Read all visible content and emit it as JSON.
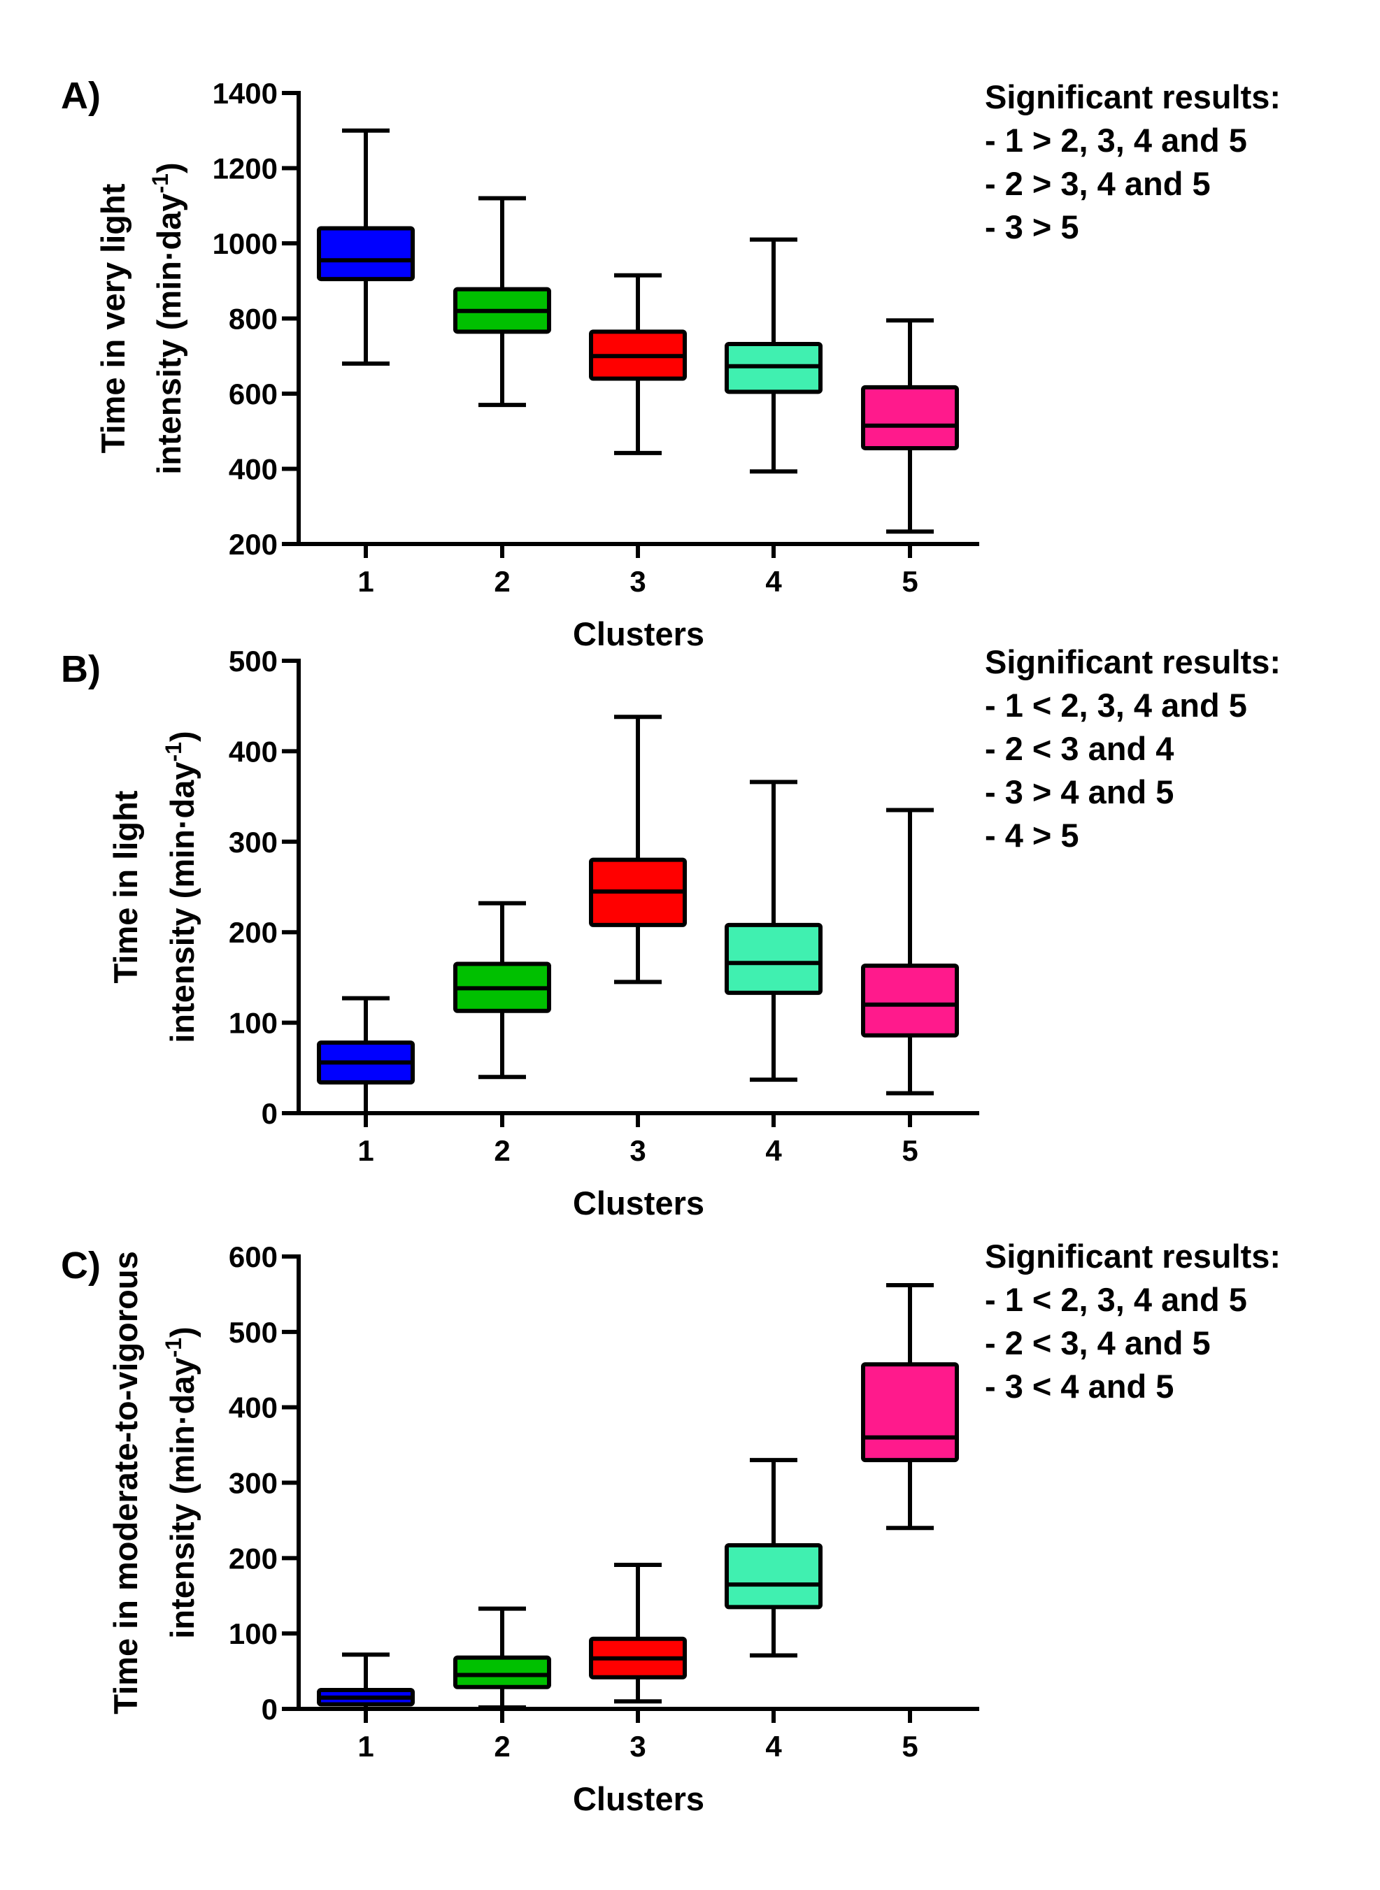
{
  "colors": {
    "cluster_1": "#0000ff",
    "cluster_2": "#00c000",
    "cluster_3": "#ff0000",
    "cluster_4": "#40f0b0",
    "cluster_5": "#ff1a8c"
  },
  "chart_data": [
    {
      "type": "box",
      "panel_label": "A)",
      "ylabel_line1": "Time in very light",
      "ylabel_line2": "intensity (min·day",
      "ylabel_superscript": "-1",
      "ylabel_close": ")",
      "xlabel": "Clusters",
      "ylim": [
        200,
        1400
      ],
      "yticks": [
        200,
        400,
        600,
        800,
        1000,
        1200,
        1400
      ],
      "categories": [
        "1",
        "2",
        "3",
        "4",
        "5"
      ],
      "boxes": [
        {
          "min": 680,
          "q1": 905,
          "median": 955,
          "q3": 1040,
          "max": 1300
        },
        {
          "min": 570,
          "q1": 765,
          "median": 820,
          "q3": 878,
          "max": 1120
        },
        {
          "min": 442,
          "q1": 640,
          "median": 700,
          "q3": 765,
          "max": 915
        },
        {
          "min": 393,
          "q1": 605,
          "median": 673,
          "q3": 732,
          "max": 1010
        },
        {
          "min": 233,
          "q1": 455,
          "median": 515,
          "q3": 617,
          "max": 795
        }
      ],
      "notes": [
        "Significant results:",
        "- 1 > 2, 3, 4 and 5",
        "- 2 > 3, 4 and 5",
        "- 3 > 5"
      ]
    },
    {
      "type": "box",
      "panel_label": "B)",
      "ylabel_line1": "Time in light",
      "ylabel_line2": "intensity (min·day",
      "ylabel_superscript": "-1",
      "ylabel_close": ")",
      "xlabel": "Clusters",
      "ylim": [
        0,
        500
      ],
      "yticks": [
        0,
        100,
        200,
        300,
        400,
        500
      ],
      "categories": [
        "1",
        "2",
        "3",
        "4",
        "5"
      ],
      "boxes": [
        {
          "min": 0,
          "q1": 34,
          "median": 56,
          "q3": 78,
          "max": 127
        },
        {
          "min": 40,
          "q1": 113,
          "median": 138,
          "q3": 165,
          "max": 232
        },
        {
          "min": 145,
          "q1": 208,
          "median": 245,
          "q3": 280,
          "max": 438
        },
        {
          "min": 37,
          "q1": 133,
          "median": 166,
          "q3": 208,
          "max": 366
        },
        {
          "min": 22,
          "q1": 86,
          "median": 120,
          "q3": 163,
          "max": 335
        }
      ],
      "notes": [
        "Significant results:",
        "- 1 < 2, 3, 4 and 5",
        "- 2 < 3 and 4",
        "- 3 > 4 and 5",
        "- 4 > 5"
      ]
    },
    {
      "type": "box",
      "panel_label": "C)",
      "ylabel_line1": "Time in moderate-to-vigorous",
      "ylabel_line2": "intensity (min·day",
      "ylabel_superscript": "-1",
      "ylabel_close": ")",
      "xlabel": "Clusters",
      "ylim": [
        0,
        600
      ],
      "yticks": [
        0,
        100,
        200,
        300,
        400,
        500,
        600
      ],
      "categories": [
        "1",
        "2",
        "3",
        "4",
        "5"
      ],
      "boxes": [
        {
          "min": 0,
          "q1": 6,
          "median": 15,
          "q3": 25,
          "max": 72
        },
        {
          "min": 2,
          "q1": 29,
          "median": 45,
          "q3": 68,
          "max": 133
        },
        {
          "min": 10,
          "q1": 42,
          "median": 67,
          "q3": 93,
          "max": 191
        },
        {
          "min": 71,
          "q1": 135,
          "median": 165,
          "q3": 217,
          "max": 330
        },
        {
          "min": 240,
          "q1": 330,
          "median": 360,
          "q3": 457,
          "max": 562
        }
      ],
      "notes": [
        "Significant results:",
        "- 1 < 2, 3, 4 and 5",
        "- 2 < 3, 4 and 5",
        "- 3 < 4 and 5"
      ]
    }
  ]
}
